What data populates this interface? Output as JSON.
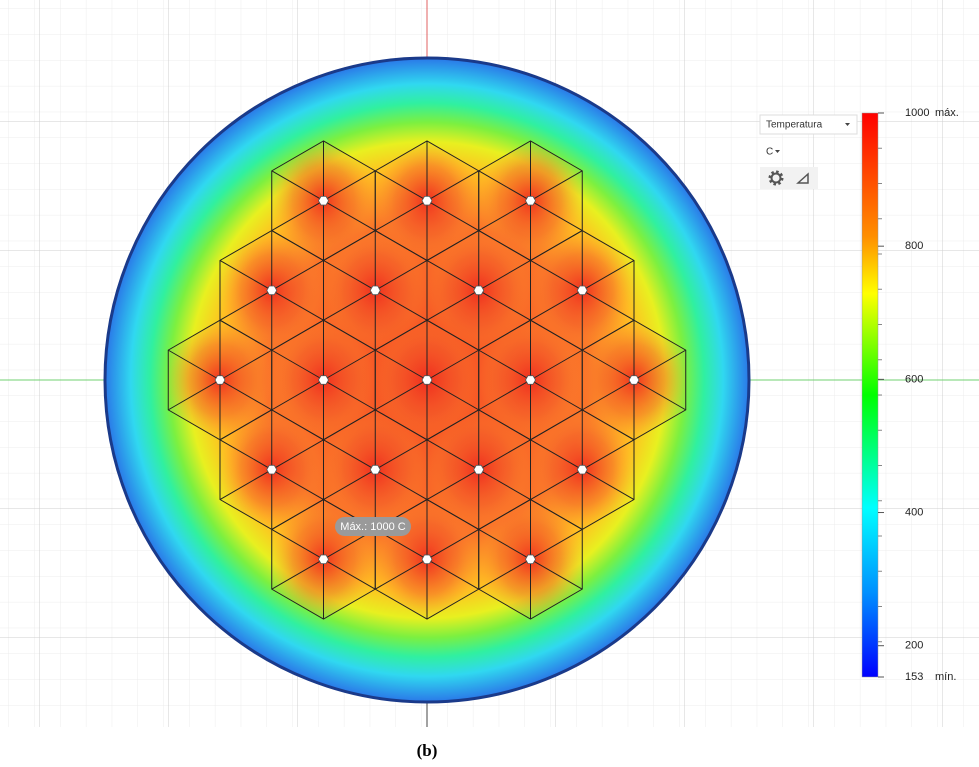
{
  "legend": {
    "quantity": "Temperatura",
    "unit": "C",
    "max": 1000,
    "max_label": "máx.",
    "min": 153,
    "min_label": "mín.",
    "ticks": [
      800,
      600,
      400,
      200
    ]
  },
  "probe_label": "Máx.: 1000 C",
  "caption": "(b)"
}
